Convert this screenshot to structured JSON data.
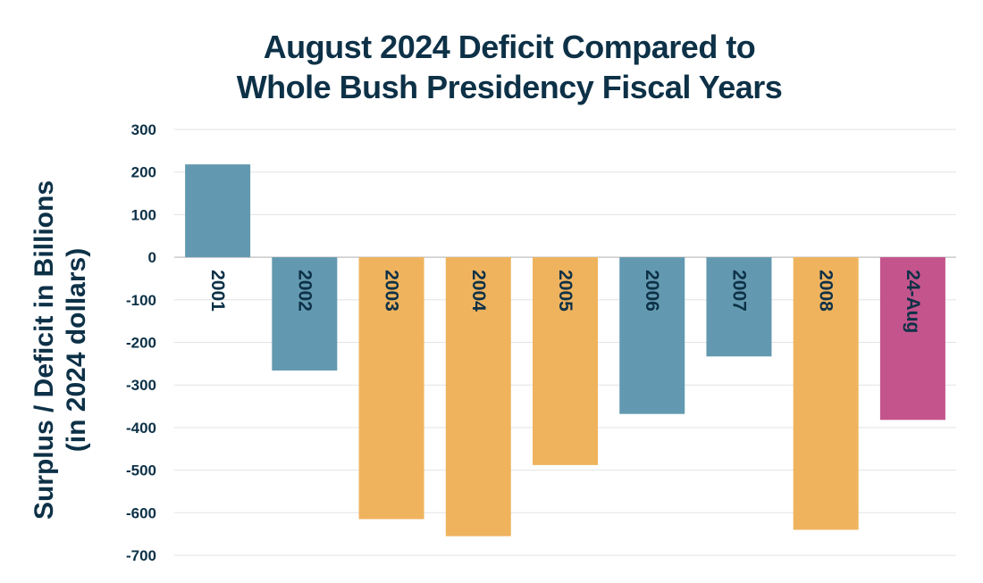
{
  "chart_data": {
    "type": "bar",
    "title_lines": [
      "August 2024 Deficit Compared to",
      "Whole Bush Presidency Fiscal Years"
    ],
    "ylabel_lines": [
      "Surplus / Deficit in Billions",
      "(in 2024 dollars)"
    ],
    "categories": [
      "2001",
      "2002",
      "2003",
      "2004",
      "2005",
      "2006",
      "2007",
      "2008",
      "24-Aug"
    ],
    "values": [
      218,
      -266,
      -615,
      -655,
      -488,
      -368,
      -233,
      -640,
      -382
    ],
    "colors": [
      "#6399b0",
      "#6399b0",
      "#efb35e",
      "#efb35e",
      "#efb35e",
      "#6399b0",
      "#6399b0",
      "#efb35e",
      "#c4548c"
    ],
    "ylim": [
      -700,
      300
    ],
    "yticks": [
      300,
      200,
      100,
      0,
      -100,
      -200,
      -300,
      -400,
      -500,
      -600,
      -700
    ],
    "ytick_labels": [
      "300",
      "200",
      "100",
      "0",
      "-100",
      "-200",
      "-300",
      "-400",
      "-500",
      "-600",
      "-700"
    ],
    "grid": true,
    "legend": "none"
  }
}
